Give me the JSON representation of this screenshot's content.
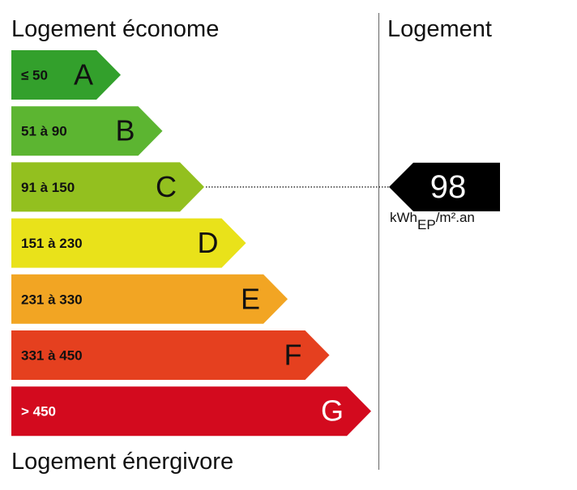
{
  "header": {
    "top_label": "Logement économe",
    "bottom_label": "Logement énergivore",
    "right_label": "Logement"
  },
  "chart_data": {
    "type": "bar",
    "title": "",
    "categories": [
      "A",
      "B",
      "C",
      "D",
      "E",
      "F",
      "G"
    ],
    "ranges": [
      "≤ 50",
      "51 à 90",
      "91 à 150",
      "151 à 230",
      "231 à 330",
      "331 à 450",
      "> 450"
    ],
    "colors": [
      "#33a02c",
      "#5cb531",
      "#93c01f",
      "#e9e21a",
      "#f2a523",
      "#e5401f",
      "#d30a1e"
    ],
    "value": 98,
    "active_class": "C",
    "unit_main": "kWh",
    "unit_sub": "EP",
    "unit_suffix": "/m².an",
    "marker_color": "#000000",
    "grid": false
  }
}
